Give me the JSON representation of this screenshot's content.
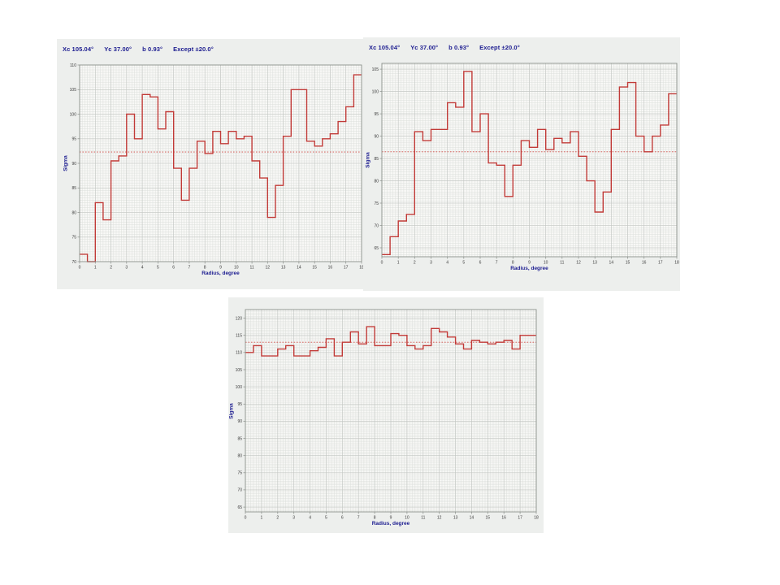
{
  "page": {
    "background": "#ffffff"
  },
  "colors": {
    "line": "#c03a37",
    "mean_line": "#cf4a45",
    "grid_minor": "#dcdfdc",
    "grid_major": "#c2c6c2",
    "frame": "#8a8f8a",
    "panel_bg": "#edefed",
    "plot_bg": "#f8f8f6",
    "title_text": "#1c1c90",
    "axis_label_text": "#1c1c90",
    "tick_text": "#3a3a3a"
  },
  "chart_data": [
    {
      "type": "line",
      "line_style": "step",
      "title_parts": [
        "Xc 105.04°",
        "Yc 37.00°",
        "b 0.93°",
        "Except ±20.0°"
      ],
      "xlabel": "Radius, degree",
      "ylabel": "Sigma",
      "xlim": [
        0,
        18
      ],
      "ylim": [
        70,
        110
      ],
      "x_ticks": [
        0,
        1,
        2,
        3,
        4,
        5,
        6,
        7,
        8,
        9,
        10,
        11,
        12,
        13,
        14,
        15,
        16,
        17,
        18
      ],
      "y_ticks": [
        70,
        75,
        80,
        85,
        90,
        95,
        100,
        105,
        110
      ],
      "x_start": 0,
      "x_step": 0.5,
      "mean_line": 92.3,
      "values": [
        71.5,
        70,
        82,
        78.5,
        90.5,
        91.5,
        100,
        95,
        104,
        103.5,
        97,
        100.5,
        89,
        82.5,
        89,
        94.5,
        92,
        96.5,
        94,
        96.5,
        95,
        95.5,
        90.5,
        87,
        79,
        85.5,
        95.5,
        105,
        105,
        94.5,
        93.5,
        95,
        96,
        98.5,
        101.5,
        108
      ],
      "layout": {
        "panel": [
          70,
          48,
          386,
          308
        ],
        "plot": [
          28,
          32,
          347,
          242
        ]
      }
    },
    {
      "type": "line",
      "line_style": "step",
      "title_parts": [
        "Xc 105.04°",
        "Yc 37.00°",
        "b 0.93°",
        "Except ±20.0°"
      ],
      "xlabel": "Radius, degree",
      "ylabel": "Sigma",
      "xlim": [
        0,
        18
      ],
      "ylim": [
        63,
        106.3
      ],
      "x_ticks": [
        0,
        1,
        2,
        3,
        4,
        5,
        6,
        7,
        8,
        9,
        10,
        11,
        12,
        13,
        14,
        15,
        16,
        17,
        18
      ],
      "y_ticks": [
        65,
        70,
        75,
        80,
        85,
        90,
        95,
        100,
        105
      ],
      "x_start": 0,
      "x_step": 0.5,
      "mean_line": 86.5,
      "values": [
        63.5,
        67.5,
        71,
        72.5,
        91,
        89,
        91.5,
        91.5,
        97.5,
        96.5,
        104.5,
        91,
        95,
        84,
        83.5,
        76.5,
        83.5,
        89,
        87.5,
        91.5,
        87,
        89.5,
        88.5,
        91,
        85.5,
        80,
        73,
        77.5,
        91.5,
        101,
        102,
        90,
        86.5,
        90,
        92.5,
        99.5
      ],
      "layout": {
        "panel": [
          447,
          46,
          390,
          312
        ],
        "plot": [
          23,
          32,
          363,
          238
        ]
      }
    },
    {
      "type": "line",
      "line_style": "step",
      "xlabel": "Radius, degree",
      "ylabel": "Sigma",
      "xlim": [
        0,
        18
      ],
      "ylim": [
        63.6,
        122.5
      ],
      "x_ticks": [
        0,
        1,
        2,
        3,
        4,
        5,
        6,
        7,
        8,
        9,
        10,
        11,
        12,
        13,
        14,
        15,
        16,
        17,
        18
      ],
      "y_ticks": [
        65,
        70,
        75,
        80,
        85,
        90,
        95,
        100,
        105,
        110,
        115,
        120
      ],
      "x_start": 0,
      "x_step": 0.5,
      "mean_line": 113,
      "values": [
        110,
        112,
        109,
        109,
        111,
        112,
        109,
        109,
        110.5,
        111.5,
        114,
        109,
        113,
        116,
        112.5,
        117.5,
        112,
        112,
        115.5,
        115,
        112,
        111,
        112,
        117,
        116,
        114.5,
        112.5,
        111,
        113.5,
        113,
        112.5,
        113,
        113.5,
        111,
        115,
        115
      ],
      "layout": {
        "panel": [
          281,
          366,
          388,
          290
        ],
        "plot": [
          21,
          15,
          358,
          249
        ]
      }
    }
  ]
}
